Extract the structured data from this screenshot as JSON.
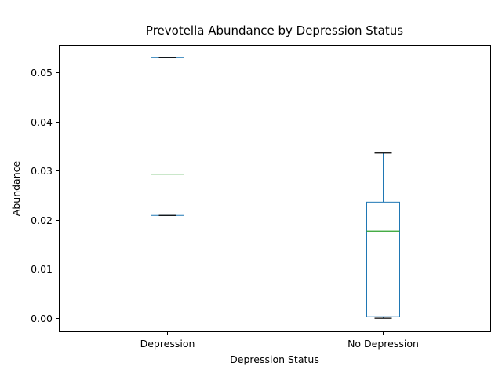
{
  "chart_data": {
    "type": "box",
    "title": "Prevotella Abundance by Depression Status",
    "xlabel": "Depression Status",
    "ylabel": "Abundance",
    "ylim": [
      -0.0027,
      0.0556
    ],
    "yticks": [
      0.0,
      0.01,
      0.02,
      0.03,
      0.04,
      0.05
    ],
    "ytick_labels": [
      "0.00",
      "0.01",
      "0.02",
      "0.03",
      "0.04",
      "0.05"
    ],
    "grid": false,
    "categories": [
      "Depression",
      "No Depression"
    ],
    "boxes": [
      {
        "category": "Depression",
        "whisker_low": 0.0209,
        "q1": 0.0209,
        "median": 0.0293,
        "q3": 0.053,
        "whisker_high": 0.053
      },
      {
        "category": "No Depression",
        "whisker_low": 0.0,
        "q1": 0.0003,
        "median": 0.0177,
        "q3": 0.0236,
        "whisker_high": 0.0336
      }
    ],
    "colors": {
      "box": "#1f77b4",
      "median": "#2ca02c",
      "cap": "#000000"
    }
  }
}
